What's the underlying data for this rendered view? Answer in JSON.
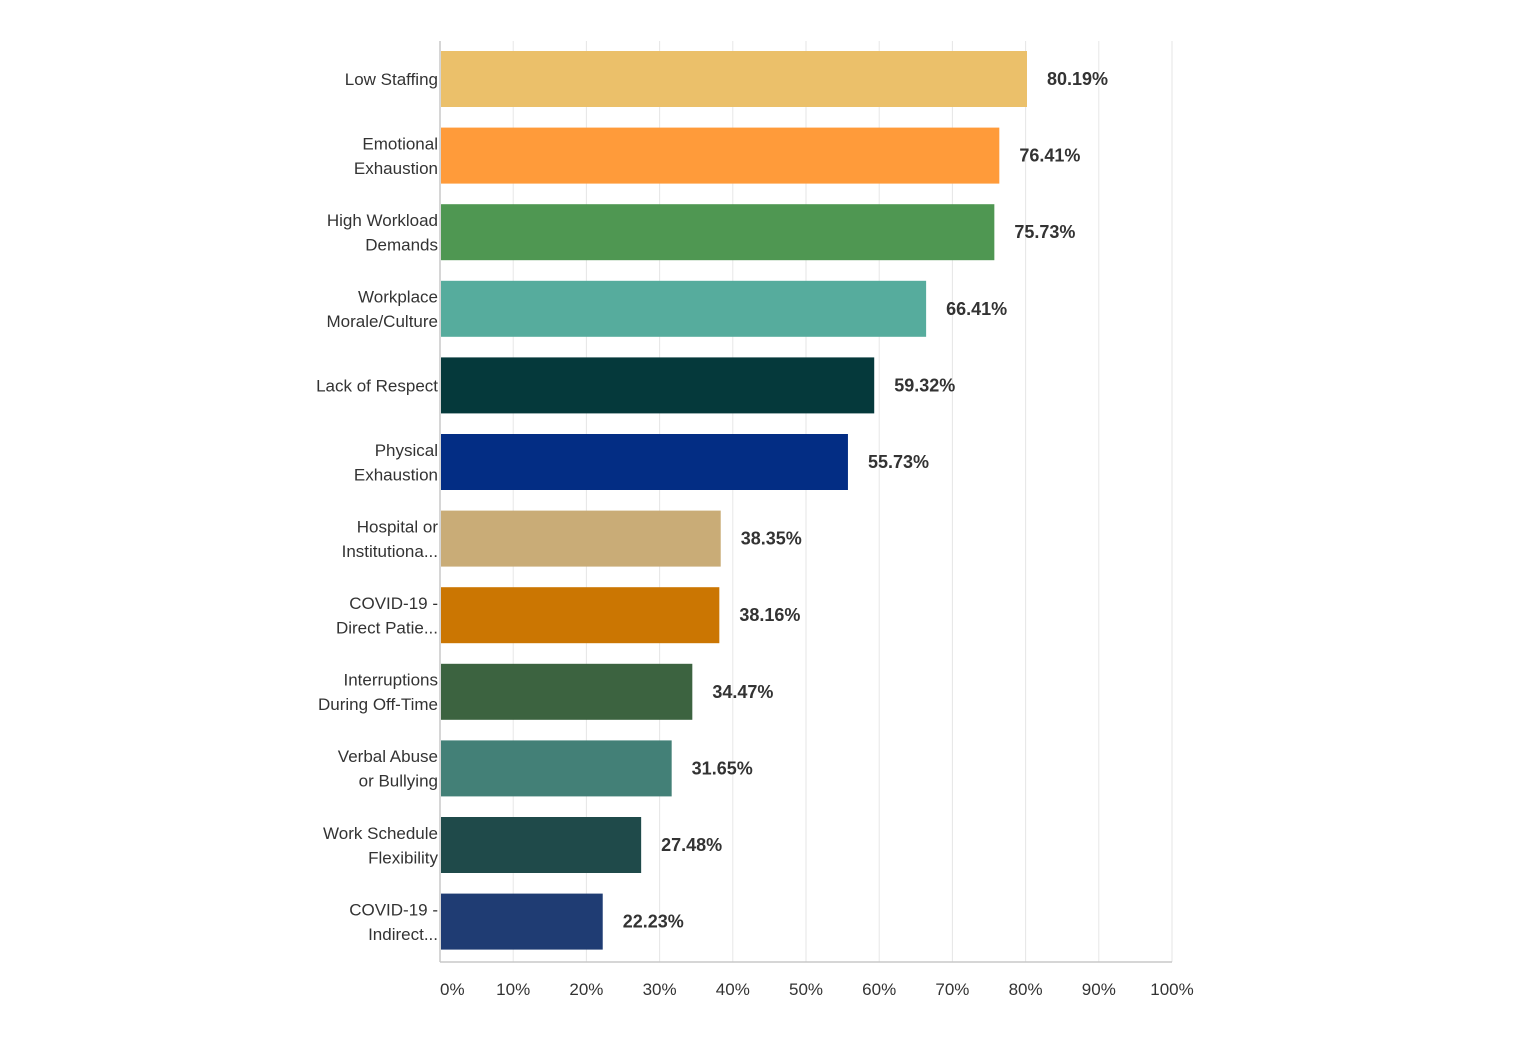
{
  "chart_data": {
    "type": "bar",
    "orientation": "horizontal",
    "title": "",
    "xlabel": "",
    "ylabel": "",
    "xlim": [
      0,
      100
    ],
    "grid": true,
    "categories": [
      [
        "Low Staffing"
      ],
      [
        "Emotional",
        "Exhaustion"
      ],
      [
        "High Workload",
        "Demands"
      ],
      [
        "Workplace",
        "Morale/Culture"
      ],
      [
        "Lack of Respect"
      ],
      [
        "Physical",
        "Exhaustion"
      ],
      [
        "Hospital or",
        "Institutiona..."
      ],
      [
        "COVID-19 -",
        "Direct Patie..."
      ],
      [
        "Interruptions",
        "During Off-Time"
      ],
      [
        "Verbal Abuse",
        "or Bullying"
      ],
      [
        "Work Schedule",
        "Flexibility"
      ],
      [
        "COVID-19 -",
        "Indirect..."
      ]
    ],
    "values": [
      80.19,
      76.41,
      75.73,
      66.41,
      59.32,
      55.73,
      38.35,
      38.16,
      34.47,
      31.65,
      27.48,
      22.23
    ],
    "value_labels": [
      "80.19%",
      "76.41%",
      "75.73%",
      "66.41%",
      "59.32%",
      "55.73%",
      "38.35%",
      "38.16%",
      "34.47%",
      "31.65%",
      "27.48%",
      "22.23%"
    ],
    "colors": [
      "#EBC06A",
      "#FF9B3A",
      "#4F9752",
      "#56AC9D",
      "#05393B",
      "#032D84",
      "#C9AC77",
      "#CB7602",
      "#3C6340",
      "#438077",
      "#1F4A4A",
      "#1F3C73"
    ],
    "x_ticks": [
      "0%",
      "10%",
      "20%",
      "30%",
      "40%",
      "50%",
      "60%",
      "70%",
      "80%",
      "90%",
      "100%"
    ]
  }
}
